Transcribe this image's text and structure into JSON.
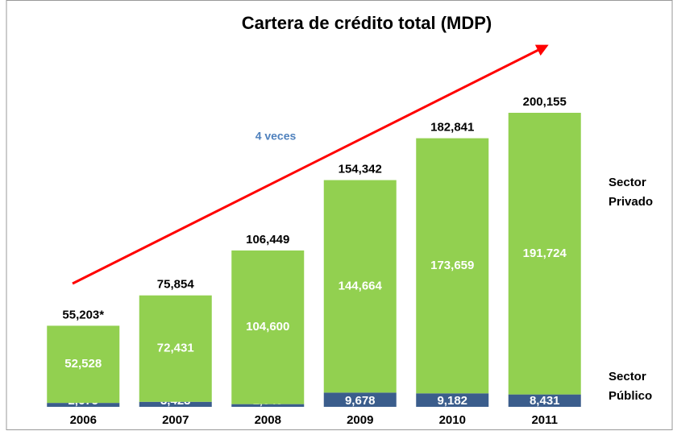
{
  "chart_data": {
    "type": "stacked_bar",
    "title": "Cartera de crédito total (MDP)",
    "categories": [
      "2006",
      "2007",
      "2008",
      "2009",
      "2010",
      "2011"
    ],
    "series": [
      {
        "name": "Sector Público",
        "color": "#3b5d8c",
        "values": [
          2675,
          3423,
          1849,
          9678,
          9182,
          8431
        ],
        "value_labels": [
          "2,675",
          "3,423",
          "1,849",
          "9,678",
          "9,182",
          "8,431"
        ]
      },
      {
        "name": "Sector Privado",
        "color": "#92d050",
        "values": [
          52528,
          72431,
          104600,
          144664,
          173659,
          191724
        ],
        "value_labels": [
          "52,528",
          "72,431",
          "104,600",
          "144,664",
          "173,659",
          "191,724"
        ]
      }
    ],
    "totals": [
      55203,
      75854,
      106449,
      154342,
      182841,
      200155
    ],
    "total_labels": [
      "55,203*",
      "75,854",
      "106,449",
      "154,342",
      "182,841",
      "200,155"
    ],
    "annotation": "4 veces",
    "ylim": [
      0,
      255000
    ]
  }
}
